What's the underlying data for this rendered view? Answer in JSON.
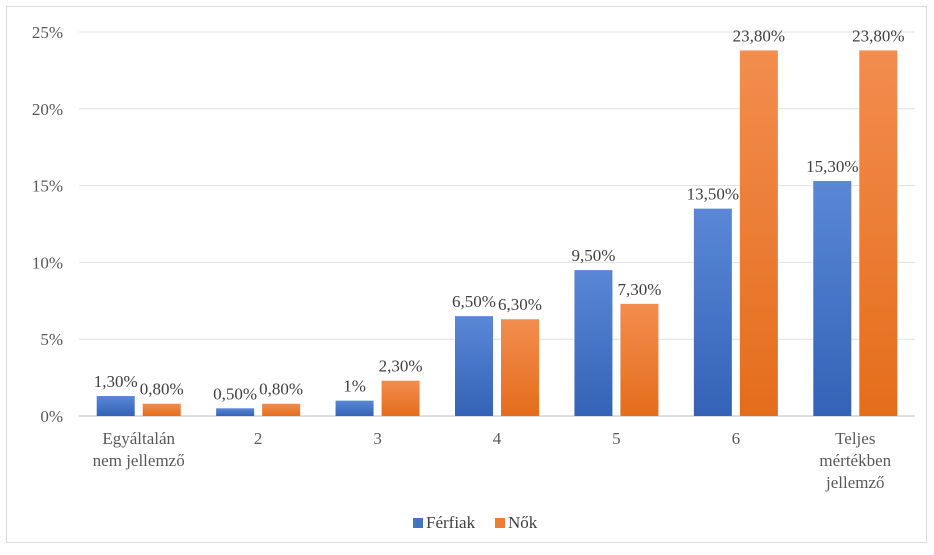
{
  "chart_data": {
    "type": "bar",
    "categories": [
      [
        "Egyáltalán",
        "nem jellemző"
      ],
      [
        "2"
      ],
      [
        "3"
      ],
      [
        "4"
      ],
      [
        "5"
      ],
      [
        "6"
      ],
      [
        "Teljes",
        "mértékben",
        "jellemző"
      ]
    ],
    "series": [
      {
        "name": "Férfiak",
        "color": "#4472c4",
        "values": [
          1.3,
          0.5,
          1.0,
          6.5,
          9.5,
          13.5,
          15.3
        ],
        "labels": [
          "1,30%",
          "0,50%",
          "1%",
          "6,50%",
          "9,50%",
          "13,50%",
          "15,30%"
        ]
      },
      {
        "name": "Nők",
        "color": "#ed7d31",
        "values": [
          0.8,
          0.8,
          2.3,
          6.3,
          7.3,
          23.8,
          23.8
        ],
        "labels": [
          "0,80%",
          "0,80%",
          "2,30%",
          "6,30%",
          "7,30%",
          "23,80%",
          "23,80%"
        ]
      }
    ],
    "y_ticks": [
      "0%",
      "5%",
      "10%",
      "15%",
      "20%",
      "25%"
    ],
    "ylim": [
      0,
      25
    ],
    "grid": true,
    "legend": "bottom"
  }
}
